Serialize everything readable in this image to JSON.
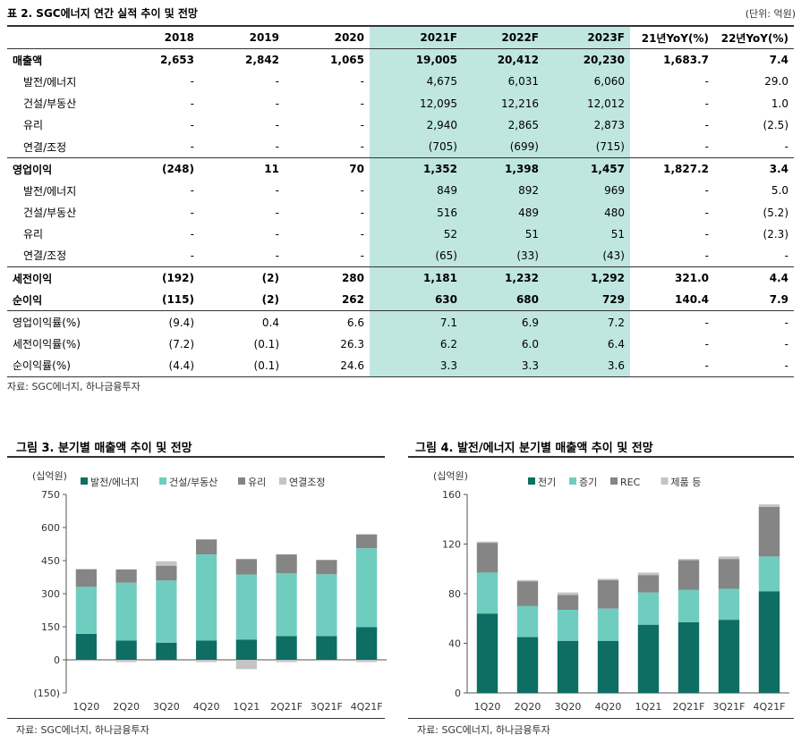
{
  "table": {
    "title": "표 2. SGC에너지 연간 실적 추이 및 전망",
    "unit": "(단위: 억원)",
    "columns": [
      "",
      "2018",
      "2019",
      "2020",
      "2021F",
      "2022F",
      "2023F",
      "21년YoY(%)",
      "22년YoY(%)"
    ],
    "rows": [
      {
        "label": "매출액",
        "type": "main",
        "values": [
          "2,653",
          "2,842",
          "1,065",
          "19,005",
          "20,412",
          "20,230",
          "1,683.7",
          "7.4"
        ]
      },
      {
        "label": "발전/에너지",
        "type": "sub",
        "values": [
          "-",
          "-",
          "-",
          "4,675",
          "6,031",
          "6,060",
          "-",
          "29.0"
        ]
      },
      {
        "label": "건설/부동산",
        "type": "sub",
        "values": [
          "-",
          "-",
          "-",
          "12,095",
          "12,216",
          "12,012",
          "-",
          "1.0"
        ]
      },
      {
        "label": "유리",
        "type": "sub",
        "values": [
          "-",
          "-",
          "-",
          "2,940",
          "2,865",
          "2,873",
          "-",
          "(2.5)"
        ]
      },
      {
        "label": "연결/조정",
        "type": "sub",
        "values": [
          "-",
          "-",
          "-",
          "(705)",
          "(699)",
          "(715)",
          "-",
          "-"
        ]
      },
      {
        "label": "영업이익",
        "type": "main",
        "sep": true,
        "values": [
          "(248)",
          "11",
          "70",
          "1,352",
          "1,398",
          "1,457",
          "1,827.2",
          "3.4"
        ]
      },
      {
        "label": "발전/에너지",
        "type": "sub",
        "values": [
          "-",
          "-",
          "-",
          "849",
          "892",
          "969",
          "-",
          "5.0"
        ]
      },
      {
        "label": "건설/부동산",
        "type": "sub",
        "values": [
          "-",
          "-",
          "-",
          "516",
          "489",
          "480",
          "-",
          "(5.2)"
        ]
      },
      {
        "label": "유리",
        "type": "sub",
        "values": [
          "-",
          "-",
          "-",
          "52",
          "51",
          "51",
          "-",
          "(2.3)"
        ]
      },
      {
        "label": "연결/조정",
        "type": "sub",
        "values": [
          "-",
          "-",
          "-",
          "(65)",
          "(33)",
          "(43)",
          "-",
          "-"
        ]
      },
      {
        "label": "세전이익",
        "type": "main",
        "sep": true,
        "values": [
          "(192)",
          "(2)",
          "280",
          "1,181",
          "1,232",
          "1,292",
          "321.0",
          "4.4"
        ]
      },
      {
        "label": "순이익",
        "type": "main",
        "values": [
          "(115)",
          "(2)",
          "262",
          "630",
          "680",
          "729",
          "140.4",
          "7.9"
        ]
      },
      {
        "label": "영업이익률(%)",
        "type": "plain",
        "sep": true,
        "values": [
          "(9.4)",
          "0.4",
          "6.6",
          "7.1",
          "6.9",
          "7.2",
          "-",
          "-"
        ]
      },
      {
        "label": "세전이익률(%)",
        "type": "plain",
        "values": [
          "(7.2)",
          "(0.1)",
          "26.3",
          "6.2",
          "6.0",
          "6.4",
          "-",
          "-"
        ]
      },
      {
        "label": "순이익률(%)",
        "type": "plain",
        "values": [
          "(4.4)",
          "(0.1)",
          "24.6",
          "3.3",
          "3.3",
          "3.6",
          "-",
          "-"
        ]
      }
    ],
    "source": "자료: SGC에너지, 하나금융투자"
  },
  "colors": {
    "teal_dark": "#0e6e63",
    "teal_light": "#6fcdbf",
    "gray": "#858585",
    "gray_light": "#c4c4c4",
    "highlight": "#bfe6e0"
  },
  "chart_data": [
    {
      "type": "bar",
      "stacked": true,
      "title": "그림 3. 분기별 매출액 추이 및 전망",
      "ylabel": "(십억원)",
      "ylim": [
        -150,
        750
      ],
      "yticks": [
        750,
        600,
        450,
        300,
        150,
        0,
        -150
      ],
      "ytick_labels": [
        "750",
        "600",
        "450",
        "300",
        "150",
        "0",
        "(150)"
      ],
      "categories": [
        "1Q20",
        "2Q20",
        "3Q20",
        "4Q20",
        "1Q21",
        "2Q21F",
        "3Q21F",
        "4Q21F"
      ],
      "series": [
        {
          "name": "발전/에너지",
          "color": "#0e6e63",
          "values": [
            118,
            88,
            78,
            88,
            92,
            108,
            108,
            148
          ]
        },
        {
          "name": "건설/부동산",
          "color": "#6fcdbf",
          "values": [
            213,
            262,
            282,
            390,
            295,
            285,
            280,
            358
          ]
        },
        {
          "name": "유리",
          "color": "#858585",
          "values": [
            80,
            60,
            67,
            68,
            70,
            85,
            65,
            63
          ]
        },
        {
          "name": "연결조정",
          "color": "#c4c4c4",
          "values": [
            -5,
            -10,
            20,
            -10,
            -42,
            -10,
            -5,
            -10
          ]
        }
      ],
      "legend_position": "top",
      "source": "자료: SGC에너지, 하나금융투자"
    },
    {
      "type": "bar",
      "stacked": true,
      "title": "그림 4. 발전/에너지 분기별 매출액 추이 및 전망",
      "ylabel": "(십억원)",
      "ylim": [
        0,
        160
      ],
      "yticks": [
        160,
        120,
        80,
        40,
        0
      ],
      "ytick_labels": [
        "160",
        "120",
        "80",
        "40",
        "0"
      ],
      "categories": [
        "1Q20",
        "2Q20",
        "3Q20",
        "4Q20",
        "1Q21",
        "2Q21F",
        "3Q21F",
        "4Q21F"
      ],
      "series": [
        {
          "name": "전기",
          "color": "#0e6e63",
          "values": [
            64,
            45,
            42,
            42,
            55,
            57,
            59,
            82
          ]
        },
        {
          "name": "증기",
          "color": "#6fcdbf",
          "values": [
            33,
            25,
            25,
            26,
            26,
            26,
            25,
            28
          ]
        },
        {
          "name": "REC",
          "color": "#858585",
          "values": [
            24,
            20,
            12,
            23,
            14,
            24,
            24,
            40
          ]
        },
        {
          "name": "제품 등",
          "color": "#c4c4c4",
          "values": [
            1,
            1,
            2,
            1,
            2,
            1,
            2,
            2
          ]
        }
      ],
      "legend_position": "top",
      "source": "자료: SGC에너지, 하나금융투자"
    }
  ]
}
